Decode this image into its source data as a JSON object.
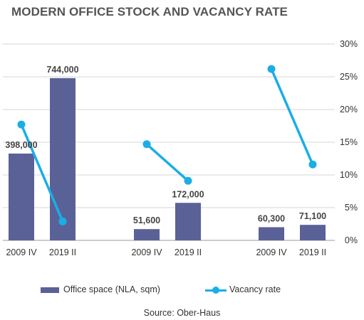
{
  "chart_data": {
    "type": "bar",
    "title": "MODERN OFFICE STOCK AND VACANCY RATE",
    "source": "Source: Ober-Haus",
    "categories": [
      "2009 IV",
      "2019 II",
      "2009 IV",
      "2019 II",
      "2009 IV",
      "2019 II"
    ],
    "series": [
      {
        "name": "Office space (NLA, sqm)",
        "kind": "bar",
        "values": [
          398000,
          744000,
          51600,
          172000,
          60300,
          71100
        ],
        "labels": [
          "398,000",
          "744,000",
          "51,600",
          "172,000",
          "60,300",
          "71,100"
        ],
        "color": "#5a6197"
      },
      {
        "name": "Vacancy rate",
        "kind": "line",
        "axis": "right",
        "values": [
          17.7,
          2.9,
          14.7,
          9.1,
          26.2,
          11.6
        ],
        "color": "#1aaee5"
      }
    ],
    "y_left_max": 900000,
    "y_right": {
      "ylim": [
        0,
        30
      ],
      "ticks": [
        "0%",
        "5%",
        "10%",
        "15%",
        "20%",
        "25%",
        "30%"
      ]
    },
    "grid": true,
    "legend": "bottom"
  }
}
